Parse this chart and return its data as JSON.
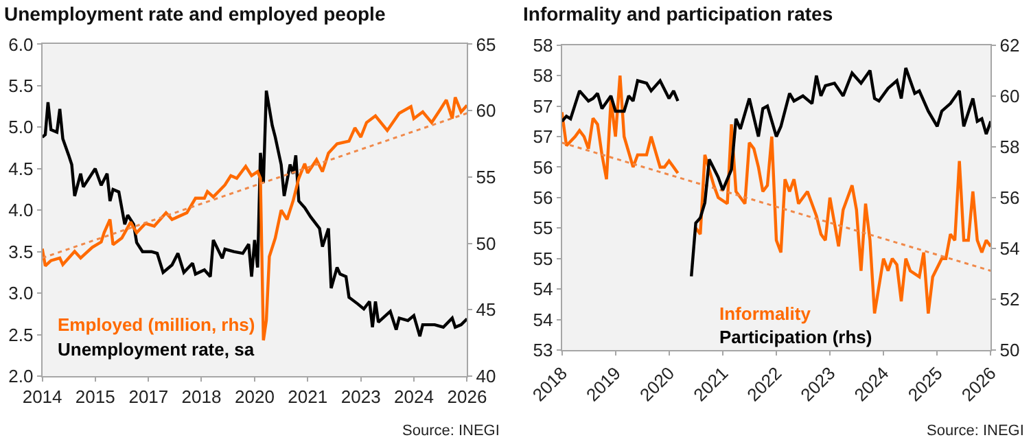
{
  "chart_data": [
    {
      "type": "line",
      "title": "Unemployment rate and employed people",
      "legend": "bottom left",
      "grid": false,
      "xlim": [
        "2014-01",
        "2026-01"
      ],
      "xticks": [
        {
          "value": "2014-01",
          "label": "2014"
        },
        {
          "value": "2015-07",
          "label": "2015"
        },
        {
          "value": "2017-01",
          "label": "2017"
        },
        {
          "value": "2018-07",
          "label": "2018"
        },
        {
          "value": "2020-01",
          "label": "2020"
        },
        {
          "value": "2021-07",
          "label": "2021"
        },
        {
          "value": "2023-01",
          "label": "2023"
        },
        {
          "value": "2024-07",
          "label": "2024"
        },
        {
          "value": "2026-01",
          "label": "2026"
        }
      ],
      "ylim": [
        2.0,
        6.0
      ],
      "yticks": [
        {
          "value": 2.0,
          "label": "2.0"
        },
        {
          "value": 2.5,
          "label": "2.5"
        },
        {
          "value": 3.0,
          "label": "3.0"
        },
        {
          "value": 3.5,
          "label": "3.5"
        },
        {
          "value": 4.0,
          "label": "4.0"
        },
        {
          "value": 4.5,
          "label": "4.5"
        },
        {
          "value": 5.0,
          "label": "5.0"
        },
        {
          "value": 5.5,
          "label": "5.5"
        },
        {
          "value": 6.0,
          "label": "6.0"
        }
      ],
      "y2lim": [
        40,
        65
      ],
      "y2ticks": [
        40,
        45,
        50,
        55,
        60,
        65
      ],
      "series": [
        {
          "name": "Employed (million, rhs)",
          "color": "#ff6a00",
          "axis": "y2",
          "line_style": "solid",
          "x": [
            "2014-01",
            "2014-02",
            "2014-04",
            "2014-07",
            "2014-08",
            "2014-12",
            "2015-02",
            "2015-06",
            "2015-09",
            "2015-10",
            "2015-12",
            "2016-01",
            "2016-04",
            "2016-07",
            "2016-09",
            "2016-12",
            "2017-03",
            "2017-07",
            "2017-09",
            "2018-02",
            "2018-05",
            "2018-08",
            "2018-09",
            "2018-11",
            "2019-03",
            "2019-05",
            "2019-07",
            "2019-10",
            "2019-12",
            "2020-02",
            "2020-03",
            "2020-04",
            "2020-05",
            "2020-06",
            "2020-08",
            "2020-10",
            "2020-12",
            "2021-02",
            "2021-04",
            "2021-06",
            "2021-07",
            "2021-10",
            "2021-12",
            "2022-02",
            "2022-05",
            "2022-09",
            "2022-11",
            "2023-01",
            "2023-03",
            "2023-06",
            "2023-10",
            "2024-02",
            "2024-06",
            "2024-07",
            "2024-10",
            "2025-01",
            "2025-04",
            "2025-06",
            "2025-08",
            "2025-09",
            "2025-11",
            "2026-01"
          ],
          "values": [
            49.6,
            48.3,
            48.7,
            48.9,
            48.4,
            49.4,
            48.9,
            49.7,
            50.1,
            50.8,
            51.8,
            49.9,
            50.4,
            51.6,
            50.8,
            51.5,
            51.3,
            52.3,
            51.8,
            52.3,
            53.4,
            53.4,
            53.9,
            53.5,
            54.4,
            55.1,
            54.9,
            55.8,
            55.1,
            55.4,
            54.9,
            42.7,
            44.2,
            49.0,
            50.4,
            52.5,
            51.8,
            53.2,
            54.9,
            56.0,
            55.3,
            56.3,
            55.4,
            56.8,
            57.5,
            57.7,
            58.7,
            58.0,
            59.1,
            59.6,
            58.5,
            59.8,
            60.3,
            59.4,
            59.9,
            59.1,
            60.1,
            60.8,
            59.4,
            61.0,
            59.9,
            60.4
          ]
        },
        {
          "name": "Unemployment rate, sa",
          "color": "#000000",
          "axis": "y",
          "line_style": "solid",
          "x": [
            "2014-01",
            "2014-02",
            "2014-03",
            "2014-04",
            "2014-06",
            "2014-07",
            "2014-08",
            "2014-10",
            "2014-11",
            "2014-12",
            "2015-02",
            "2015-03",
            "2015-07",
            "2015-09",
            "2015-11",
            "2015-12",
            "2016-01",
            "2016-03",
            "2016-05",
            "2016-06",
            "2016-08",
            "2016-09",
            "2016-11",
            "2017-02",
            "2017-04",
            "2017-06",
            "2017-09",
            "2017-11",
            "2018-01",
            "2018-04",
            "2018-05",
            "2018-08",
            "2018-10",
            "2018-11",
            "2019-02",
            "2019-03",
            "2019-06",
            "2019-09",
            "2019-11",
            "2019-12",
            "2020-01",
            "2020-02",
            "2020-03",
            "2020-04",
            "2020-05",
            "2020-07",
            "2020-08",
            "2020-10",
            "2020-11",
            "2021-01",
            "2021-02",
            "2021-03",
            "2021-04",
            "2021-06",
            "2021-08",
            "2021-11",
            "2021-12",
            "2022-02",
            "2022-03",
            "2022-05",
            "2022-06",
            "2022-08",
            "2022-09",
            "2022-12",
            "2023-02",
            "2023-04",
            "2023-05",
            "2023-06",
            "2023-07",
            "2023-11",
            "2024-01",
            "2024-02",
            "2024-05",
            "2024-07",
            "2024-09",
            "2024-10",
            "2025-02",
            "2025-05",
            "2025-08",
            "2025-09",
            "2025-11",
            "2026-01"
          ],
          "values": [
            4.88,
            4.91,
            5.3,
            4.97,
            4.94,
            5.22,
            4.86,
            4.66,
            4.55,
            4.17,
            4.44,
            4.28,
            4.5,
            4.3,
            4.44,
            4.11,
            4.25,
            4.22,
            3.83,
            3.94,
            3.83,
            3.61,
            3.5,
            3.5,
            3.48,
            3.25,
            3.34,
            3.48,
            3.25,
            3.36,
            3.23,
            3.28,
            3.2,
            3.64,
            3.42,
            3.53,
            3.5,
            3.48,
            3.59,
            3.2,
            3.64,
            3.31,
            4.69,
            4.33,
            5.44,
            5.02,
            4.88,
            4.55,
            4.17,
            4.55,
            4.44,
            4.66,
            4.11,
            4.03,
            3.92,
            3.78,
            3.56,
            3.78,
            3.06,
            3.31,
            3.23,
            3.2,
            2.95,
            2.87,
            2.81,
            2.9,
            2.59,
            2.9,
            2.65,
            2.78,
            2.56,
            2.7,
            2.67,
            2.73,
            2.48,
            2.62,
            2.62,
            2.59,
            2.7,
            2.59,
            2.62,
            2.69
          ]
        },
        {
          "color": "#f0894a",
          "axis": "y2",
          "line_style": "dotted",
          "x": [
            "2014-01",
            "2026-01"
          ],
          "values": [
            48.9,
            59.8
          ]
        }
      ],
      "annotations": [
        "Source: INEGI"
      ]
    },
    {
      "type": "line",
      "title": "Informality and participation rates",
      "legend": "bottom",
      "grid": false,
      "xlim": [
        "2018-01",
        "2026-01"
      ],
      "xticks": [
        {
          "value": "2018-01",
          "label": "2018"
        },
        {
          "value": "2019-01",
          "label": "2019"
        },
        {
          "value": "2020-01",
          "label": "2020"
        },
        {
          "value": "2021-01",
          "label": "2021"
        },
        {
          "value": "2022-01",
          "label": "2022"
        },
        {
          "value": "2023-01",
          "label": "2023"
        },
        {
          "value": "2024-01",
          "label": "2024"
        },
        {
          "value": "2025-01",
          "label": "2025"
        },
        {
          "value": "2026-01",
          "label": "2026"
        }
      ],
      "ylim": [
        53,
        58
      ],
      "yticks": [
        53,
        {
          "value": 53.5,
          "label": "54"
        },
        54,
        {
          "value": 54.5,
          "label": "55"
        },
        55,
        {
          "value": 55.5,
          "label": "56"
        },
        56,
        {
          "value": 56.5,
          "label": "57"
        },
        57,
        {
          "value": 57.5,
          "label": "58"
        },
        58
      ],
      "y2lim": [
        50,
        62
      ],
      "y2ticks": [
        50,
        52,
        54,
        56,
        58,
        60,
        62
      ],
      "series": [
        {
          "name": "Informality",
          "color": "#ff6a00",
          "axis": "y",
          "line_style": "solid",
          "x": [
            "2018-01",
            "2018-02",
            "2018-04",
            "2018-05",
            "2018-06",
            "2018-07",
            "2018-08",
            "2018-09",
            "2018-10",
            "2018-11",
            "2018-12",
            "2019-01",
            "2019-02",
            "2019-03",
            "2019-05",
            "2019-06",
            "2019-08",
            "2019-09",
            "2019-11",
            "2019-12",
            "2020-01",
            "2020-02",
            "2020-03",
            "2020-04",
            "2020-05",
            "2020-07",
            "2020-08",
            "2020-09",
            "2020-11",
            "2020-12",
            "2021-02",
            "2021-03",
            "2021-04",
            "2021-06",
            "2021-07",
            "2021-08",
            "2021-09",
            "2021-10",
            "2021-11",
            "2021-12",
            "2022-01",
            "2022-02",
            "2022-03",
            "2022-04",
            "2022-05",
            "2022-06",
            "2022-08",
            "2022-10",
            "2022-11",
            "2022-12",
            "2023-01",
            "2023-03",
            "2023-04",
            "2023-06",
            "2023-07",
            "2023-08",
            "2023-09",
            "2023-10",
            "2023-11",
            "2024-01",
            "2024-02",
            "2024-03",
            "2024-04",
            "2024-05",
            "2024-06",
            "2024-07",
            "2024-09",
            "2024-10",
            "2024-11",
            "2024-12",
            "2025-02",
            "2025-03",
            "2025-04",
            "2025-05",
            "2025-06",
            "2025-07",
            "2025-08",
            "2025-09",
            "2025-10",
            "2025-11",
            "2025-12",
            "2026-01"
          ],
          "values": [
            56.9,
            56.35,
            56.5,
            56.6,
            56.5,
            56.3,
            56.8,
            56.7,
            56.2,
            55.8,
            57.1,
            56.5,
            57.5,
            56.5,
            56.0,
            56.2,
            56.2,
            56.5,
            56.0,
            56.0,
            56.1,
            56.0,
            55.9,
            null,
            null,
            55.0,
            54.9,
            56.2,
            55.7,
            55.5,
            55.4,
            56.7,
            55.6,
            55.4,
            56.4,
            56.3,
            56.0,
            55.6,
            55.7,
            56.5,
            54.8,
            54.6,
            55.8,
            55.6,
            55.8,
            55.4,
            55.6,
            55.2,
            54.9,
            54.8,
            55.5,
            54.7,
            55.3,
            55.7,
            55.3,
            54.3,
            55.4,
            54.8,
            53.6,
            54.5,
            54.3,
            54.5,
            54.4,
            53.8,
            54.5,
            54.3,
            54.2,
            54.6,
            53.6,
            54.2,
            54.5,
            54.5,
            54.9,
            54.8,
            56.1,
            54.8,
            54.8,
            55.6,
            54.8,
            54.6,
            54.8,
            54.7
          ]
        },
        {
          "name": "Participation (rhs)",
          "color": "#000000",
          "axis": "y2",
          "line_style": "solid",
          "x": [
            "2018-01",
            "2018-02",
            "2018-03",
            "2018-05",
            "2018-07",
            "2018-08",
            "2018-09",
            "2018-10",
            "2018-12",
            "2019-01",
            "2019-03",
            "2019-04",
            "2019-05",
            "2019-06",
            "2019-08",
            "2019-09",
            "2019-11",
            "2020-01",
            "2020-02",
            "2020-03",
            "2020-04",
            "2020-05",
            "2020-06",
            "2020-07",
            "2020-08",
            "2020-09",
            "2020-10",
            "2020-12",
            "2021-01",
            "2021-03",
            "2021-04",
            "2021-05",
            "2021-07",
            "2021-09",
            "2021-10",
            "2021-11",
            "2022-01",
            "2022-02",
            "2022-04",
            "2022-05",
            "2022-07",
            "2022-09",
            "2022-10",
            "2022-11",
            "2022-12",
            "2023-02",
            "2023-04",
            "2023-06",
            "2023-08",
            "2023-10",
            "2023-11",
            "2023-12",
            "2024-02",
            "2024-04",
            "2024-05",
            "2024-06",
            "2024-08",
            "2024-09",
            "2024-11",
            "2025-01",
            "2025-02",
            "2025-04",
            "2025-06",
            "2025-07",
            "2025-09",
            "2025-10",
            "2025-11",
            "2025-12",
            "2026-01"
          ],
          "values": [
            59.0,
            59.2,
            59.1,
            60.2,
            59.8,
            59.9,
            60.1,
            59.5,
            60.0,
            59.4,
            59.4,
            60.0,
            59.8,
            60.6,
            60.5,
            60.2,
            60.6,
            59.9,
            60.2,
            59.8,
            null,
            null,
            52.9,
            55.0,
            55.2,
            55.8,
            57.5,
            56.8,
            56.3,
            57.1,
            59.1,
            58.7,
            59.9,
            58.4,
            59.5,
            59.6,
            58.4,
            58.8,
            60.1,
            59.8,
            60.0,
            59.7,
            60.8,
            60.0,
            60.4,
            60.5,
            60.0,
            60.9,
            60.5,
            61.0,
            59.9,
            59.8,
            60.3,
            60.6,
            59.9,
            61.1,
            60.1,
            60.2,
            59.4,
            58.8,
            59.4,
            59.7,
            60.2,
            58.8,
            59.9,
            59.0,
            59.1,
            58.5,
            59.0
          ]
        },
        {
          "color": "#f0894a",
          "axis": "y",
          "line_style": "dotted",
          "x": [
            "2018-01",
            "2026-01"
          ],
          "values": [
            56.4,
            54.3
          ]
        }
      ],
      "annotations": [
        "Source: INEGI"
      ]
    }
  ]
}
